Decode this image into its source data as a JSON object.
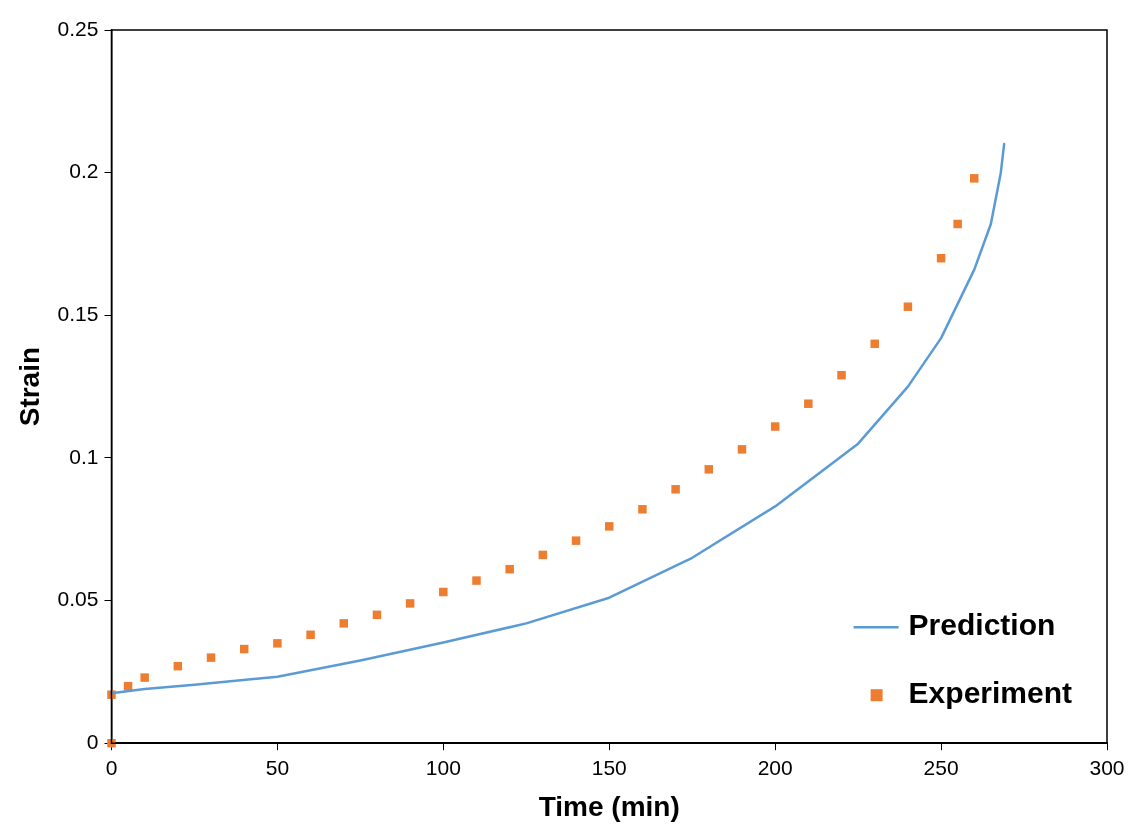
{
  "chart_data": {
    "type": "line",
    "xlabel": "Time (min)",
    "ylabel": "Strain",
    "xlim": [
      0,
      300
    ],
    "xticks": [
      0,
      50,
      100,
      150,
      200,
      250,
      300
    ],
    "ylim": [
      0,
      0.25
    ],
    "yticks": [
      0,
      0.05,
      0.1,
      0.15,
      0.2,
      0.25
    ],
    "grid": false,
    "legend": "bottom right",
    "series": [
      {
        "name": "Prediction",
        "color": "#5b9bd5",
        "marker": "none",
        "line_style": "solid",
        "x": [
          0,
          10,
          25,
          50,
          75,
          100,
          125,
          150,
          175,
          200,
          225,
          240,
          250,
          260,
          265,
          268,
          269
        ],
        "values": [
          0.0175,
          0.019,
          0.0205,
          0.0233,
          0.029,
          0.0353,
          0.042,
          0.051,
          0.065,
          0.083,
          0.105,
          0.125,
          0.142,
          0.166,
          0.182,
          0.2,
          0.21
        ]
      },
      {
        "name": "Experiment",
        "type": "scatter",
        "color": "#ed7d31",
        "marker": "square",
        "x": [
          0,
          0,
          5,
          10,
          20,
          30,
          40,
          50,
          60,
          70,
          80,
          90,
          100,
          110,
          120,
          130,
          140,
          150,
          160,
          170,
          180,
          190,
          200,
          210,
          220,
          230,
          240,
          250,
          255,
          260
        ],
        "values": [
          0,
          0.017,
          0.02,
          0.023,
          0.027,
          0.03,
          0.033,
          0.035,
          0.038,
          0.042,
          0.045,
          0.049,
          0.053,
          0.057,
          0.061,
          0.066,
          0.071,
          0.076,
          0.082,
          0.089,
          0.096,
          0.103,
          0.111,
          0.119,
          0.129,
          0.14,
          0.153,
          0.17,
          0.182,
          0.198
        ]
      }
    ]
  }
}
